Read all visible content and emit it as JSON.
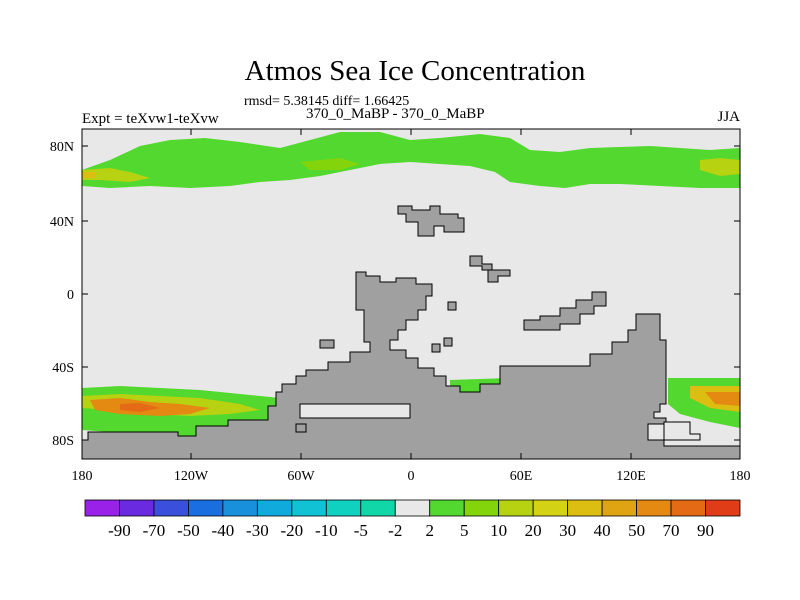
{
  "chart_data": {
    "type": "heatmap",
    "title": "Atmos Sea Ice Concentration",
    "stats": "rmsd= 5.38145 diff= 1.66425",
    "experiment": "Expt = teXvw1-teXvw",
    "period": "370_0_MaBP - 370_0_MaBP",
    "season": "JJA",
    "x_ticks": [
      "180",
      "120W",
      "60W",
      "0",
      "60E",
      "120E",
      "180"
    ],
    "y_ticks": [
      "80N",
      "40N",
      "0",
      "40S",
      "80S"
    ],
    "xlim": [
      -180,
      180
    ],
    "ylim": [
      -90,
      90
    ],
    "colorbar": {
      "labels": [
        "-90",
        "-70",
        "-50",
        "-40",
        "-30",
        "-20",
        "-10",
        "-5",
        "-2",
        "2",
        "5",
        "10",
        "20",
        "30",
        "40",
        "50",
        "70",
        "90"
      ],
      "colors": [
        "#9a22e8",
        "#6a2ae0",
        "#3a50dc",
        "#1a6ee0",
        "#1890dc",
        "#10aadc",
        "#10c2d4",
        "#10d0c0",
        "#10d6a8",
        "#e8e8e8",
        "#52d82e",
        "#84d40c",
        "#b6d210",
        "#d4d214",
        "#dcbe12",
        "#e0a412",
        "#e48a12",
        "#e46a16",
        "#e03c18"
      ],
      "land_color": "#a0a0a0",
      "zero_color": "#e8e8e8"
    },
    "regions": [
      {
        "name": "arctic-band",
        "lat_range": [
          52,
          80
        ],
        "values": "2 to 30"
      },
      {
        "name": "southern-band",
        "lat_range": [
          -75,
          -48
        ],
        "values": "2 to 50"
      }
    ]
  }
}
